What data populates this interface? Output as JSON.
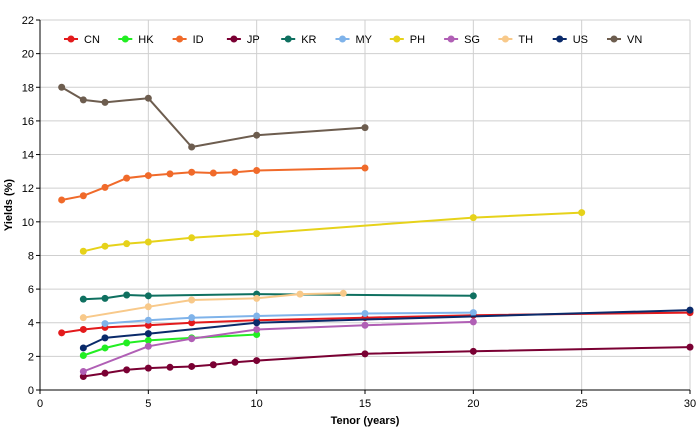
{
  "chart_data": {
    "type": "line",
    "title": "",
    "xlabel": "Tenor (years)",
    "ylabel": "Yields (%)",
    "xlim": [
      0,
      30
    ],
    "ylim": [
      0,
      22
    ],
    "x_ticks": [
      0,
      5,
      10,
      15,
      20,
      25,
      30
    ],
    "y_ticks": [
      0,
      2,
      4,
      6,
      8,
      10,
      12,
      14,
      16,
      18,
      20,
      22
    ],
    "grid": true,
    "legend": "top",
    "series": [
      {
        "name": "CN",
        "color": "#e31a1c",
        "points": [
          [
            1,
            3.4
          ],
          [
            2,
            3.6
          ],
          [
            3,
            3.72
          ],
          [
            5,
            3.85
          ],
          [
            7,
            4.0
          ],
          [
            10,
            4.15
          ],
          [
            15,
            4.3
          ],
          [
            20,
            4.45
          ],
          [
            30,
            4.6
          ]
        ]
      },
      {
        "name": "HK",
        "color": "#22ee22",
        "points": [
          [
            2,
            2.05
          ],
          [
            3,
            2.5
          ],
          [
            4,
            2.8
          ],
          [
            5,
            2.95
          ],
          [
            7,
            3.1
          ],
          [
            10,
            3.3
          ]
        ]
      },
      {
        "name": "ID",
        "color": "#f06a2a",
        "points": [
          [
            1,
            11.3
          ],
          [
            2,
            11.55
          ],
          [
            3,
            12.05
          ],
          [
            4,
            12.6
          ],
          [
            5,
            12.75
          ],
          [
            6,
            12.85
          ],
          [
            7,
            12.95
          ],
          [
            8,
            12.9
          ],
          [
            9,
            12.95
          ],
          [
            10,
            13.05
          ],
          [
            15,
            13.2
          ]
        ]
      },
      {
        "name": "JP",
        "color": "#7a0033",
        "points": [
          [
            2,
            0.8
          ],
          [
            3,
            1.0
          ],
          [
            4,
            1.2
          ],
          [
            5,
            1.3
          ],
          [
            6,
            1.35
          ],
          [
            7,
            1.4
          ],
          [
            8,
            1.5
          ],
          [
            9,
            1.65
          ],
          [
            10,
            1.75
          ],
          [
            15,
            2.15
          ],
          [
            20,
            2.3
          ],
          [
            30,
            2.55
          ]
        ]
      },
      {
        "name": "KR",
        "color": "#0f7060",
        "points": [
          [
            2,
            5.4
          ],
          [
            3,
            5.45
          ],
          [
            4,
            5.65
          ],
          [
            5,
            5.6
          ],
          [
            10,
            5.7
          ],
          [
            20,
            5.6
          ]
        ]
      },
      {
        "name": "MY",
        "color": "#7fb3ea",
        "points": [
          [
            3,
            3.95
          ],
          [
            5,
            4.15
          ],
          [
            7,
            4.3
          ],
          [
            10,
            4.4
          ],
          [
            15,
            4.55
          ],
          [
            20,
            4.6
          ]
        ]
      },
      {
        "name": "PH",
        "color": "#e6d21a",
        "points": [
          [
            2,
            8.25
          ],
          [
            3,
            8.55
          ],
          [
            4,
            8.7
          ],
          [
            5,
            8.8
          ],
          [
            7,
            9.05
          ],
          [
            10,
            9.3
          ],
          [
            20,
            10.25
          ],
          [
            25,
            10.55
          ]
        ]
      },
      {
        "name": "SG",
        "color": "#b05fb5",
        "points": [
          [
            2,
            1.1
          ],
          [
            5,
            2.6
          ],
          [
            7,
            3.05
          ],
          [
            10,
            3.6
          ],
          [
            15,
            3.85
          ],
          [
            20,
            4.05
          ]
        ]
      },
      {
        "name": "TH",
        "color": "#f8c98a",
        "points": [
          [
            2,
            4.3
          ],
          [
            5,
            4.95
          ],
          [
            7,
            5.35
          ],
          [
            10,
            5.45
          ],
          [
            12,
            5.7
          ],
          [
            14,
            5.75
          ]
        ]
      },
      {
        "name": "US",
        "color": "#0a2a6a",
        "points": [
          [
            2,
            2.5
          ],
          [
            3,
            3.1
          ],
          [
            5,
            3.35
          ],
          [
            10,
            4.0
          ],
          [
            30,
            4.75
          ]
        ]
      },
      {
        "name": "VN",
        "color": "#6d5d4f",
        "points": [
          [
            1,
            18.0
          ],
          [
            2,
            17.25
          ],
          [
            3,
            17.1
          ],
          [
            5,
            17.35
          ],
          [
            7,
            14.45
          ],
          [
            10,
            15.15
          ],
          [
            15,
            15.6
          ]
        ]
      }
    ]
  }
}
